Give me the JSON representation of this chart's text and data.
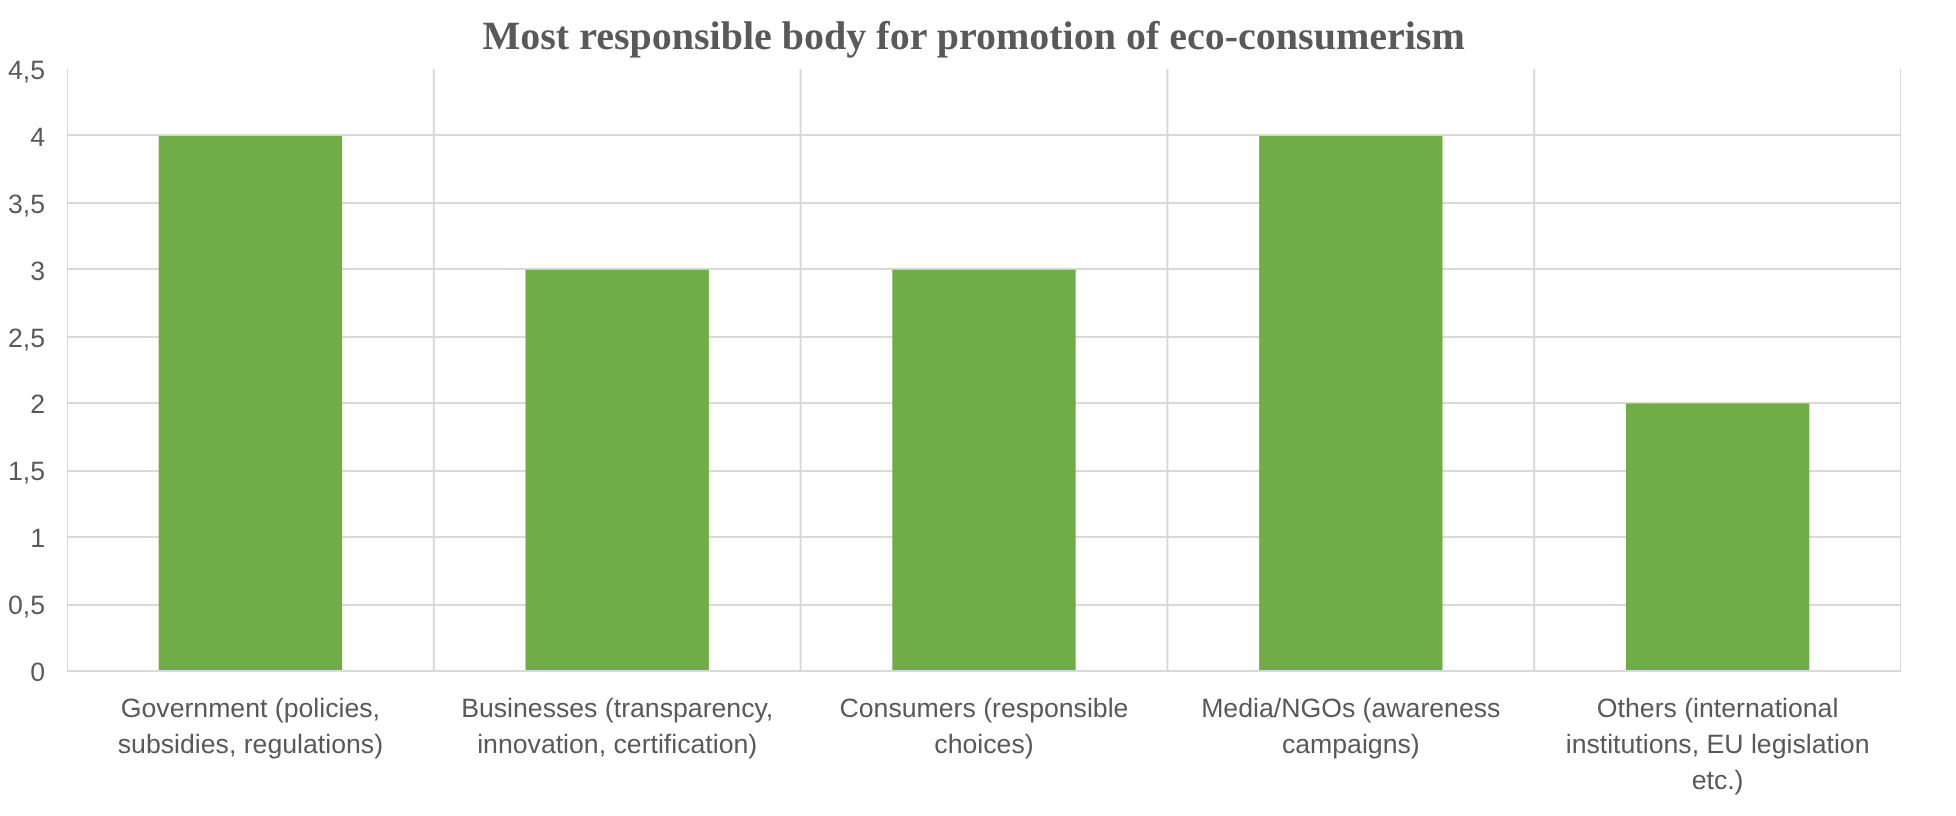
{
  "chart_data": {
    "type": "bar",
    "title": "Most responsible body  for  promotion of eco-consumerism",
    "categories": [
      "Government (policies, subsidies, regulations)",
      "Businesses (transparency, innovation, certification)",
      "Consumers (responsible choices)",
      "Media/NGOs (awareness campaigns)",
      "Others (international institutions, EU legislation etc.)"
    ],
    "values": [
      4,
      3,
      3,
      4,
      2
    ],
    "color": "#70ad47",
    "ylim": [
      0,
      4.5
    ],
    "yticks": [
      0,
      {
        "value": 0.5,
        "label": "0,5"
      },
      1,
      {
        "value": 1.5,
        "label": "1,5"
      },
      2,
      {
        "value": 2.5,
        "label": "2,5"
      },
      3,
      {
        "value": 3.5,
        "label": "3,5"
      },
      4,
      {
        "value": 4.5,
        "label": "4,5"
      }
    ],
    "grid": true
  }
}
